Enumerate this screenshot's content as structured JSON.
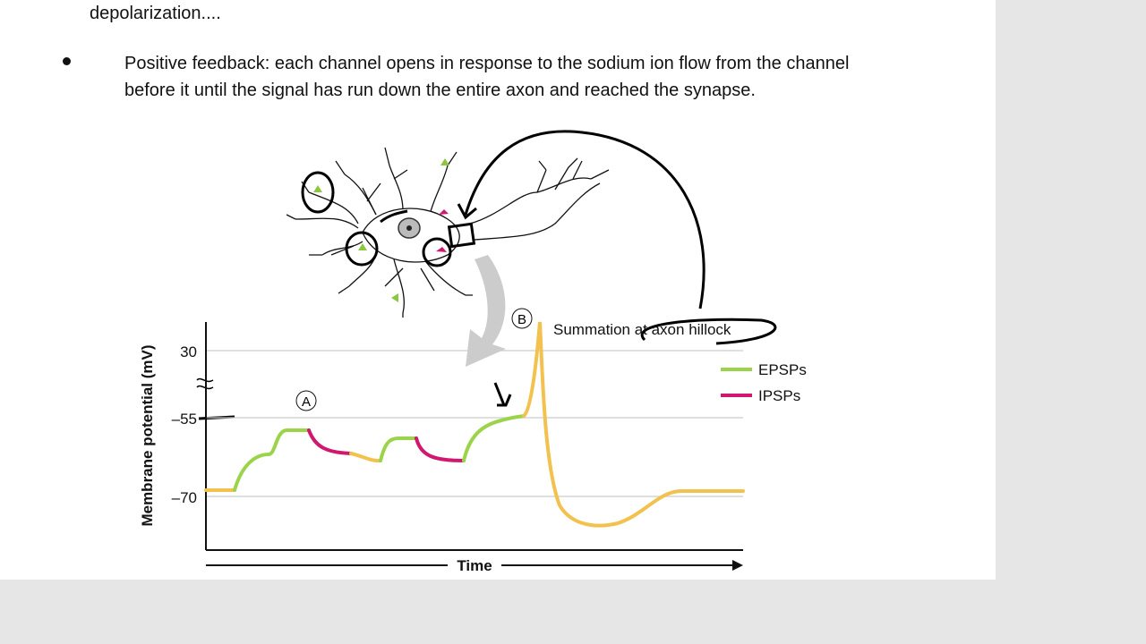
{
  "slide": {
    "previous_text": "depolarization....",
    "bullet": "Positive feedback: each channel opens in response to the sodium ion flow from the channel before it until the signal has run down the entire axon and reached the synapse.",
    "figure": {
      "y_axis_label": "Membrane potential (mV)",
      "y_tick_labels": [
        "30",
        "–55",
        "–70"
      ],
      "x_axis_label": "Time",
      "marker_a": "A",
      "marker_b": "B",
      "annotation": "Summation at axon hillock",
      "legend": [
        "EPSPs",
        "IPSPs"
      ]
    }
  }
}
